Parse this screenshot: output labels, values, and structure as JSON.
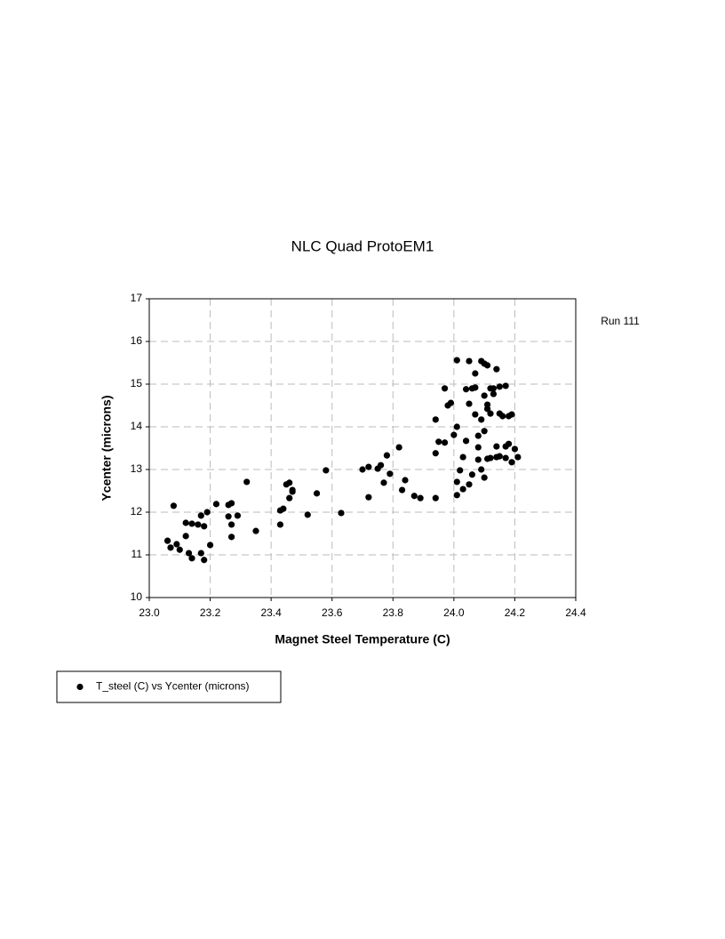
{
  "chart_data": {
    "type": "scatter",
    "title": "NLC Quad ProtoEM1",
    "annotation": "Run 111",
    "xlabel": "Magnet Steel Temperature (C)",
    "ylabel": "Ycenter (microns)",
    "xlim": [
      23.0,
      24.4
    ],
    "ylim": [
      10,
      17
    ],
    "xticks": [
      {
        "value": 23.0,
        "label": "23.0"
      },
      23.2,
      23.4,
      23.6,
      23.8,
      {
        "value": 24.0,
        "label": "24.0"
      },
      24.2,
      24.4
    ],
    "yticks": [
      10,
      11,
      12,
      13,
      14,
      15,
      16,
      17
    ],
    "grid": true,
    "legend": "bottom-left",
    "series": [
      {
        "name": "T_steel (C) vs Ycenter (microns)",
        "color": "#000000",
        "x": [
          23.08,
          23.06,
          23.07,
          23.09,
          23.1,
          23.12,
          23.12,
          23.13,
          23.14,
          23.14,
          23.16,
          23.17,
          23.17,
          23.18,
          23.18,
          23.19,
          23.2,
          23.22,
          23.26,
          23.26,
          23.27,
          23.27,
          23.27,
          23.29,
          23.32,
          23.35,
          23.43,
          23.43,
          23.44,
          23.45,
          23.46,
          23.46,
          23.47,
          23.47,
          23.52,
          23.55,
          23.58,
          23.63,
          23.7,
          23.72,
          23.72,
          23.75,
          23.76,
          23.77,
          23.78,
          23.79,
          23.82,
          23.83,
          23.84,
          23.87,
          23.89,
          23.94,
          23.94,
          23.94,
          23.95,
          23.97,
          23.97,
          23.98,
          23.99,
          24.01,
          24.0,
          24.01,
          24.01,
          24.01,
          24.02,
          24.03,
          24.03,
          24.04,
          24.04,
          24.05,
          24.05,
          24.05,
          24.06,
          24.06,
          24.07,
          24.07,
          24.07,
          24.08,
          24.08,
          24.08,
          24.09,
          24.09,
          24.09,
          24.1,
          24.1,
          24.1,
          24.1,
          24.11,
          24.11,
          24.11,
          24.11,
          24.12,
          24.12,
          24.12,
          24.13,
          24.13,
          24.14,
          24.14,
          24.14,
          24.15,
          24.15,
          24.15,
          24.16,
          24.17,
          24.17,
          24.17,
          24.18,
          24.18,
          24.19,
          24.19,
          24.2,
          24.21
        ],
        "values": [
          12.15,
          11.33,
          11.17,
          11.25,
          11.12,
          11.44,
          11.75,
          11.04,
          10.92,
          11.73,
          11.71,
          11.04,
          11.92,
          11.67,
          10.88,
          12.0,
          11.23,
          12.19,
          12.17,
          11.9,
          11.71,
          12.21,
          11.42,
          11.92,
          12.71,
          11.56,
          12.04,
          11.71,
          12.08,
          12.65,
          12.33,
          12.69,
          12.52,
          12.48,
          11.94,
          12.44,
          12.98,
          11.98,
          13.0,
          12.35,
          13.06,
          13.02,
          13.1,
          12.69,
          13.33,
          12.9,
          13.52,
          12.52,
          12.75,
          12.38,
          12.33,
          12.33,
          13.38,
          14.17,
          13.65,
          14.9,
          13.63,
          14.5,
          14.56,
          15.56,
          13.81,
          12.71,
          12.4,
          14.0,
          12.98,
          13.29,
          12.54,
          14.88,
          13.67,
          15.54,
          14.54,
          12.65,
          14.9,
          12.88,
          15.25,
          14.29,
          14.92,
          13.52,
          13.79,
          13.23,
          15.54,
          14.17,
          13.0,
          12.81,
          15.48,
          13.9,
          14.73,
          14.42,
          15.44,
          13.25,
          14.52,
          14.9,
          13.27,
          14.31,
          14.77,
          14.9,
          13.54,
          15.35,
          13.29,
          14.31,
          14.94,
          13.31,
          14.25,
          14.96,
          13.54,
          13.27,
          14.25,
          13.6,
          13.17,
          14.29,
          13.48,
          13.29
        ]
      }
    ]
  }
}
